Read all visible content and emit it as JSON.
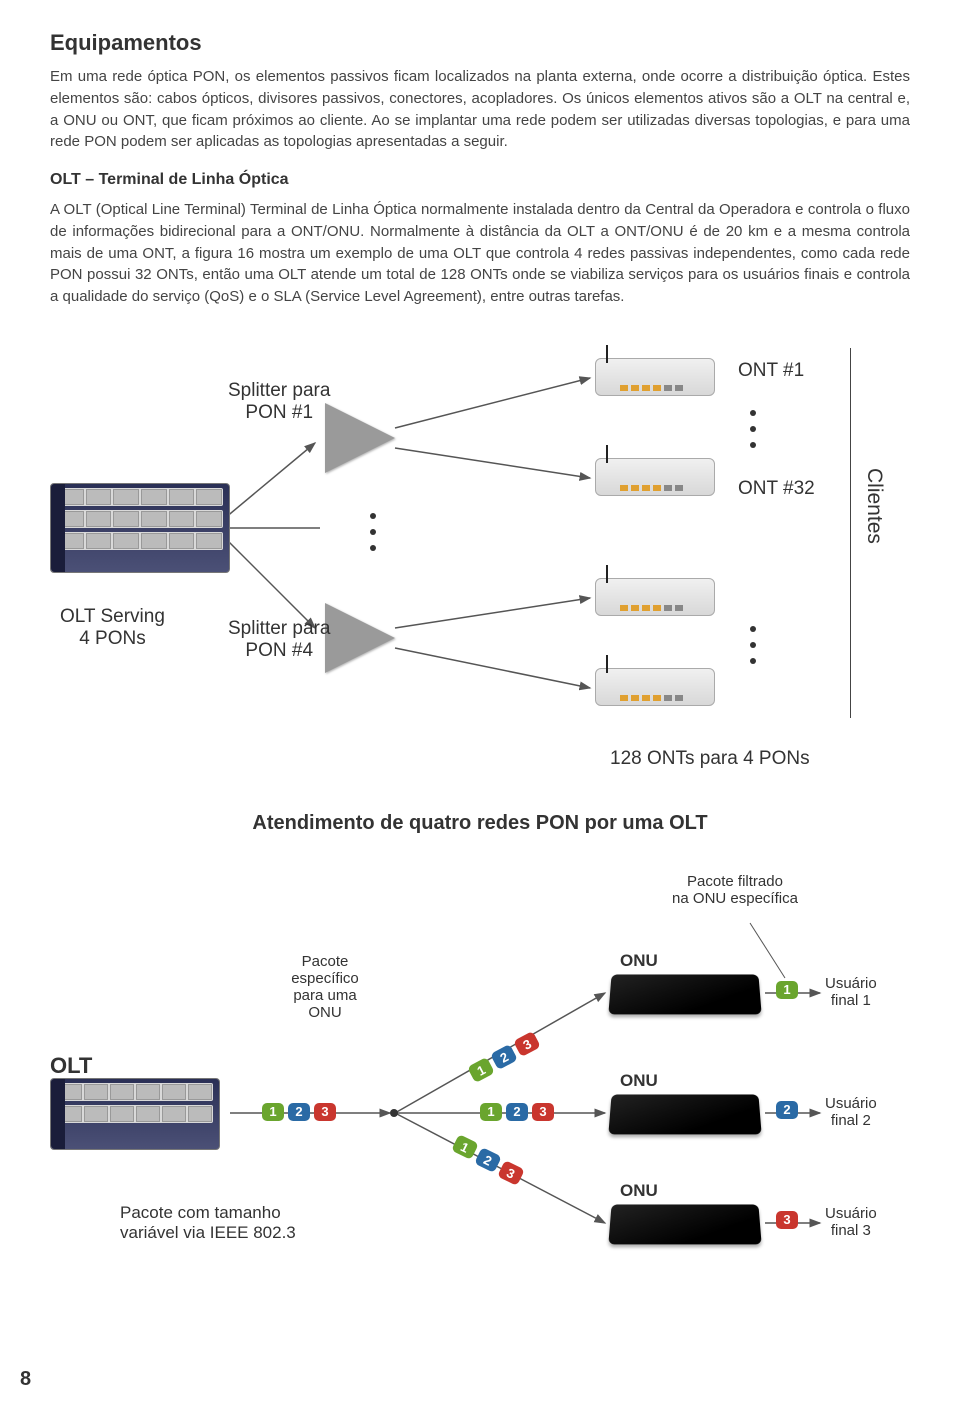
{
  "headings": {
    "h1": "Equipamentos",
    "h2": "OLT – Terminal de Linha Óptica"
  },
  "paragraphs": {
    "p1": "Em uma rede óptica PON, os elementos passivos ficam localizados na planta externa, onde ocorre a distribuição óptica. Estes elementos são: cabos ópticos, divisores passivos, conectores, acopladores. Os únicos elementos ativos são a OLT na central e, a ONU ou ONT, que ficam próximos ao cliente. Ao se implantar uma rede podem ser utilizadas diversas topologias, e para uma rede PON podem ser aplicadas as topologias apresentadas a seguir.",
    "p2": "A OLT (Optical Line Terminal) Terminal de Linha Óptica normalmente instalada dentro da Central da Operadora e controla o fluxo de informações bidirecional para a ONT/ONU. Normalmente à distância da OLT a ONT/ONU é de 20 km e a mesma controla mais de uma ONT, a figura 16 mostra um exemplo de uma OLT que controla 4 redes passivas independentes, como cada rede PON possui 32 ONTs, então uma OLT atende um total de 128 ONTs onde se viabiliza serviços para os usuários finais e controla a qualidade do serviço (QoS) e o SLA (Service Level Agreement), entre outras tarefas."
  },
  "diagram1": {
    "type": "network",
    "splitter_label_1": "Splitter para\nPON #1",
    "splitter_label_4": "Splitter para\nPON #4",
    "ont1_label": "ONT #1",
    "ont32_label": "ONT #32",
    "olt_label": "OLT Serving\n4 PONs",
    "clientes_label": "Clientes",
    "footer_label": "128 ONTs para 4 PONs",
    "colors": {
      "line": "#555555",
      "splitter": "#9a9a9a",
      "olt_dark": "#2a2f55",
      "ont_light": "#e8e8e8"
    }
  },
  "diagram1_caption": "Atendimento de quatro redes PON por uma OLT",
  "diagram2": {
    "type": "network",
    "olt_label": "OLT",
    "pacote_especifico": "Pacote\nespecífico\npara uma\nONU",
    "pacote_filtrado": "Pacote filtrado\nna ONU específica",
    "pacote_tamanho": "Pacote com tamanho\nvariável via IEEE 802.3",
    "onu_label": "ONU",
    "user1": "Usuário\nfinal 1",
    "user2": "Usuário\nfinal 2",
    "user3": "Usuário\nfinal 3",
    "badge_colors": {
      "1": "#6aa52e",
      "2": "#2a6aa5",
      "3": "#c9362e"
    }
  },
  "page_number": "8"
}
